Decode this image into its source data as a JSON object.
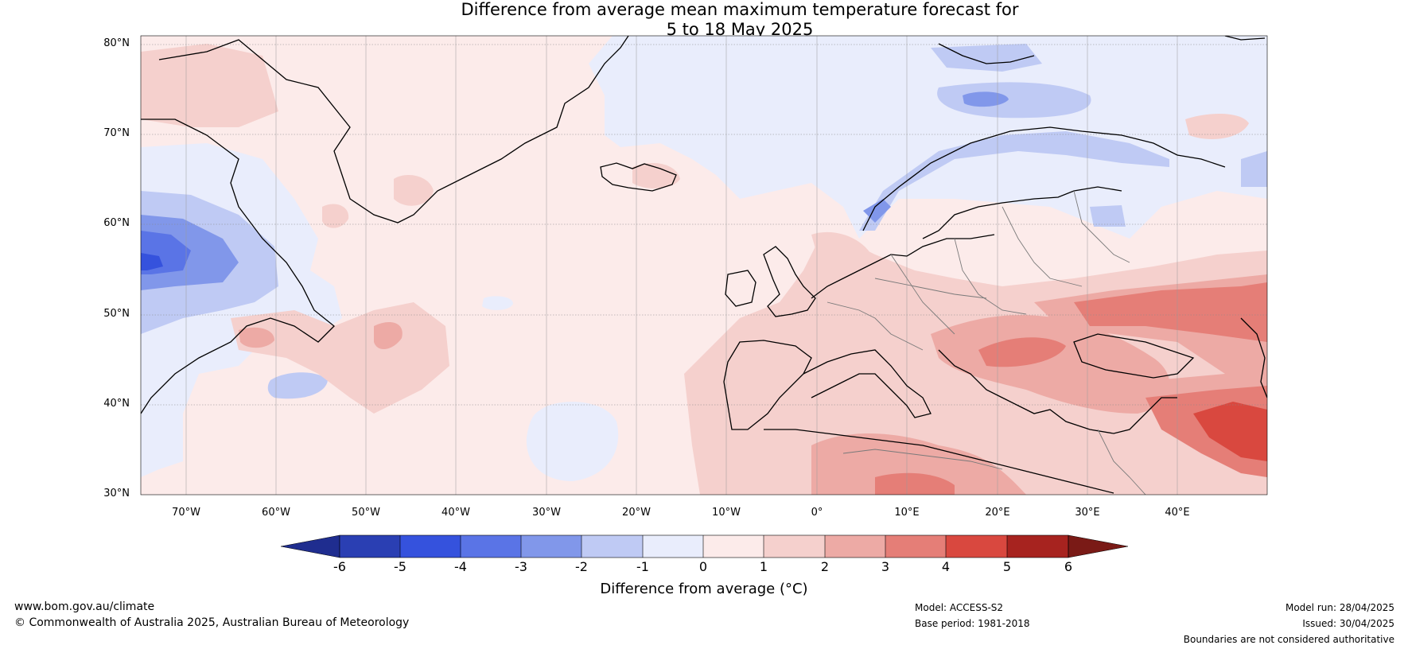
{
  "title": {
    "line1": "Difference from average mean maximum temperature forecast for",
    "line2": "5 to 18 May 2025"
  },
  "map": {
    "lat_labels": [
      "80°N",
      "70°N",
      "60°N",
      "50°N",
      "40°N",
      "30°N"
    ],
    "lon_labels": [
      "70°W",
      "60°W",
      "50°W",
      "40°W",
      "30°W",
      "20°W",
      "10°W",
      "0°",
      "10°E",
      "20°E",
      "30°E",
      "40°E"
    ],
    "extent": {
      "lon": [
        -75,
        50
      ],
      "lat": [
        30,
        81
      ]
    }
  },
  "colorbar": {
    "ticks": [
      "-6",
      "-5",
      "-4",
      "-3",
      "-2",
      "-1",
      "0",
      "1",
      "2",
      "3",
      "4",
      "5",
      "6"
    ],
    "label": "Difference from average (°C)",
    "colors": [
      "#1f2d8f",
      "#2a3fb3",
      "#3552dd",
      "#5a74e6",
      "#8197ea",
      "#bfcaf4",
      "#e9edfc",
      "#fcebea",
      "#f5d0cd",
      "#edaaa5",
      "#e57e77",
      "#d9483f",
      "#a7231f",
      "#7a1a16"
    ]
  },
  "footer": {
    "website": "www.bom.gov.au/climate",
    "copyright": "© Commonwealth of Australia 2025, Australian Bureau of Meteorology",
    "model": "Model: ACCESS-S2",
    "base_period": "Base period: 1981-2018",
    "model_run": "Model run: 28/04/2025",
    "issued": "Issued: 30/04/2025",
    "disclaimer": "Boundaries are not considered authoritative"
  }
}
